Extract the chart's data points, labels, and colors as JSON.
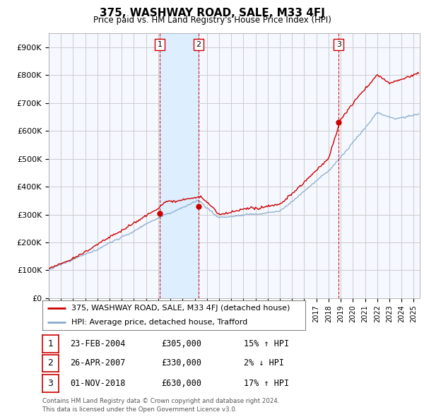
{
  "title": "375, WASHWAY ROAD, SALE, M33 4FJ",
  "subtitle": "Price paid vs. HM Land Registry's House Price Index (HPI)",
  "ylabel_ticks": [
    "£0",
    "£100K",
    "£200K",
    "£300K",
    "£400K",
    "£500K",
    "£600K",
    "£700K",
    "£800K",
    "£900K"
  ],
  "ytick_values": [
    0,
    100000,
    200000,
    300000,
    400000,
    500000,
    600000,
    700000,
    800000,
    900000
  ],
  "ylim": [
    0,
    950000
  ],
  "xlim_start": 1995.0,
  "xlim_end": 2025.5,
  "shade_x1": 2004.13,
  "shade_x2": 2007.32,
  "transactions": [
    {
      "num": 1,
      "date": "23-FEB-2004",
      "price": 305000,
      "pct": "15%",
      "dir": "↑",
      "x": 2004.13
    },
    {
      "num": 2,
      "date": "26-APR-2007",
      "price": 330000,
      "pct": "2%",
      "dir": "↓",
      "x": 2007.32
    },
    {
      "num": 3,
      "date": "01-NOV-2018",
      "price": 630000,
      "pct": "17%",
      "dir": "↑",
      "x": 2018.83
    }
  ],
  "legend_line1": "375, WASHWAY ROAD, SALE, M33 4FJ (detached house)",
  "legend_line2": "HPI: Average price, detached house, Trafford",
  "footer1": "Contains HM Land Registry data © Crown copyright and database right 2024.",
  "footer2": "This data is licensed under the Open Government Licence v3.0.",
  "line_color_red": "#cc0000",
  "line_color_blue": "#88aacc",
  "shade_color": "#ddeeff",
  "background_color": "#ffffff",
  "grid_color": "#cccccc",
  "num_box_color": "#cc0000",
  "chart_bg": "#f5f8ff"
}
